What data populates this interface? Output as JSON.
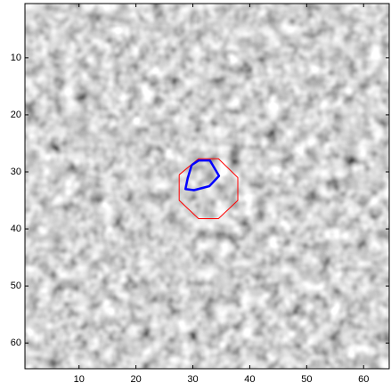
{
  "chart_data": {
    "type": "line",
    "xlim": [
      0.5,
      64.5
    ],
    "ylim": [
      64.5,
      0.5
    ],
    "y_reversed": true,
    "xticks": [
      10,
      20,
      30,
      40,
      50,
      60
    ],
    "yticks": [
      10,
      20,
      30,
      40,
      50,
      60
    ],
    "series": [
      {
        "color": "#ff0000",
        "width": 1,
        "x": [
          27.6,
          31.0,
          34.5,
          37.9,
          37.9,
          34.5,
          31.0,
          27.6,
          27.6
        ],
        "values": [
          30.5,
          27.7,
          27.7,
          31.0,
          35.0,
          38.2,
          38.2,
          35.0,
          30.5
        ]
      },
      {
        "color": "#0000ff",
        "width": 2.5,
        "x": [
          29.8,
          31.0,
          33.0,
          34.6,
          32.9,
          30.2,
          28.7,
          29.1,
          29.8
        ],
        "values": [
          28.8,
          28.0,
          28.0,
          30.7,
          32.5,
          33.2,
          33.0,
          31.1,
          28.8
        ]
      }
    ]
  }
}
